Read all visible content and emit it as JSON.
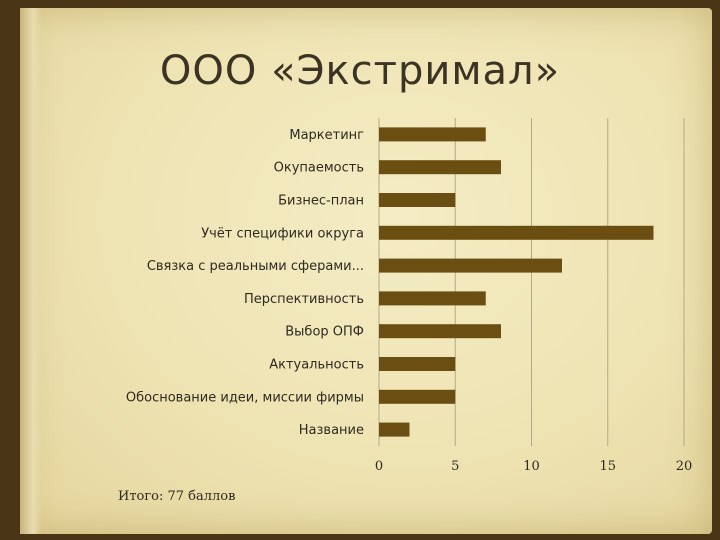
{
  "slide": {
    "title": "ООО «Экстримал»",
    "total": "Итого: 77 баллов"
  },
  "colors": {
    "bar": "#6b4f12",
    "grid": "#b3a98a",
    "page": "#f1e8bb",
    "frame": "#4a3516"
  },
  "chart_data": {
    "type": "bar",
    "orientation": "horizontal",
    "categories": [
      "Маркетинг",
      "Окупаемость",
      "Бизнес-план",
      "Учёт специфики округа",
      "Связка с реальными сферами...",
      "Перспективность",
      "Выбор ОПФ",
      "Актуальность",
      "Обоснование идеи, миссии фирмы",
      "Название"
    ],
    "values": [
      7,
      8,
      5,
      18,
      12,
      7,
      8,
      5,
      5,
      2
    ],
    "xlim": [
      0,
      20
    ],
    "xticks": [
      "0",
      "5",
      "10",
      "15",
      "20"
    ],
    "grid": "vertical",
    "title": "",
    "xlabel": "",
    "ylabel": ""
  }
}
